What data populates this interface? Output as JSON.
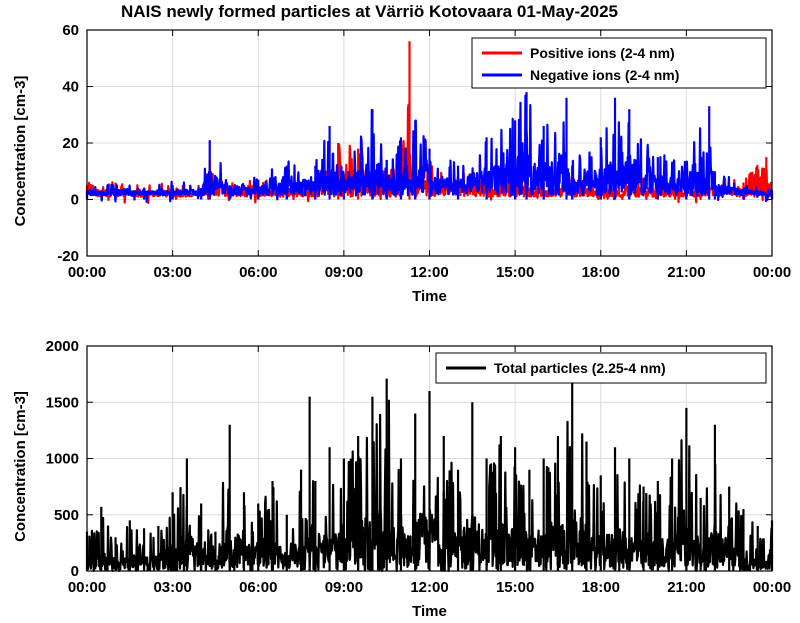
{
  "chart_data": [
    {
      "type": "line",
      "title": "NAIS newly formed particles at Värriö Kotovaara 01-May-2025",
      "xlabel": "Time",
      "ylabel": "Concentration [cm-3]",
      "xlim_hours": [
        0,
        24
      ],
      "ylim": [
        -20,
        60
      ],
      "xticks": [
        "00:00",
        "03:00",
        "06:00",
        "09:00",
        "12:00",
        "15:00",
        "18:00",
        "21:00",
        "00:00"
      ],
      "yticks": [
        "-20",
        "0",
        "20",
        "40",
        "60"
      ],
      "grid": true,
      "legend_position": "top-right",
      "series": [
        {
          "name": "Positive ions (2-4 nm)",
          "color": "#ff0000",
          "x": [
            0,
            1,
            2,
            3,
            4,
            4.3,
            5,
            6,
            7,
            8,
            8.8,
            9.5,
            10,
            10.5,
            11.0,
            11.3,
            11.5,
            12,
            13,
            14,
            15,
            16,
            17,
            18,
            18.5,
            19,
            20,
            21,
            22,
            23,
            23.8,
            24
          ],
          "y": [
            5,
            6,
            4,
            5,
            4,
            14,
            5,
            6,
            5,
            6,
            20,
            18,
            10,
            14,
            6,
            56,
            16,
            12,
            10,
            8,
            9,
            6,
            10,
            7,
            4,
            6,
            7,
            5,
            8,
            6,
            15,
            3
          ]
        },
        {
          "name": "Negative ions (2-4 nm)",
          "color": "#0000ff",
          "x": [
            0,
            1,
            2,
            3,
            4,
            4.3,
            5,
            6,
            7,
            8,
            8.5,
            9,
            10,
            10.5,
            11,
            11.5,
            12,
            13,
            14,
            15,
            15.4,
            16,
            16.8,
            17,
            18,
            18.5,
            19,
            20,
            21,
            21.8,
            22,
            23,
            24
          ],
          "y": [
            3,
            4,
            3,
            5,
            4,
            21,
            5,
            7,
            12,
            12,
            26,
            8,
            32,
            14,
            22,
            28,
            18,
            12,
            22,
            28,
            38,
            26,
            36,
            12,
            22,
            36,
            32,
            15,
            12,
            33,
            10,
            4,
            2
          ]
        }
      ]
    },
    {
      "type": "line",
      "title": "",
      "xlabel": "Time",
      "ylabel": "Concentration [cm-3]",
      "xlim_hours": [
        0,
        24
      ],
      "ylim": [
        0,
        2000
      ],
      "xticks": [
        "00:00",
        "03:00",
        "06:00",
        "09:00",
        "12:00",
        "15:00",
        "18:00",
        "21:00",
        "00:00"
      ],
      "yticks": [
        "0",
        "500",
        "1000",
        "1500",
        "2000"
      ],
      "grid": true,
      "legend_position": "top-right",
      "series": [
        {
          "name": "Total particles (2.25-4 nm)",
          "color": "#000000",
          "x": [
            0,
            0.5,
            1,
            1.5,
            2,
            2.5,
            3,
            3.5,
            4,
            4.5,
            5,
            5.5,
            6,
            6.5,
            7,
            7.5,
            7.8,
            8,
            8.5,
            9,
            9.5,
            10,
            10.5,
            11,
            11.5,
            12,
            12.5,
            13,
            13.5,
            14,
            14.5,
            15,
            15.5,
            16,
            16.5,
            17,
            17.5,
            18,
            18.5,
            19,
            19.5,
            20,
            20.5,
            21,
            21.5,
            22,
            22.5,
            23,
            23.5,
            24
          ],
          "y": [
            350,
            570,
            300,
            450,
            380,
            400,
            700,
            1000,
            600,
            350,
            1300,
            700,
            600,
            800,
            500,
            900,
            1550,
            800,
            1100,
            1000,
            1200,
            1550,
            1710,
            1000,
            1400,
            1600,
            1200,
            900,
            1500,
            1000,
            1200,
            1100,
            900,
            1000,
            1200,
            1680,
            1150,
            850,
            1100,
            1000,
            750,
            800,
            1000,
            1450,
            650,
            1300,
            750,
            550,
            400,
            450
          ]
        }
      ]
    }
  ]
}
